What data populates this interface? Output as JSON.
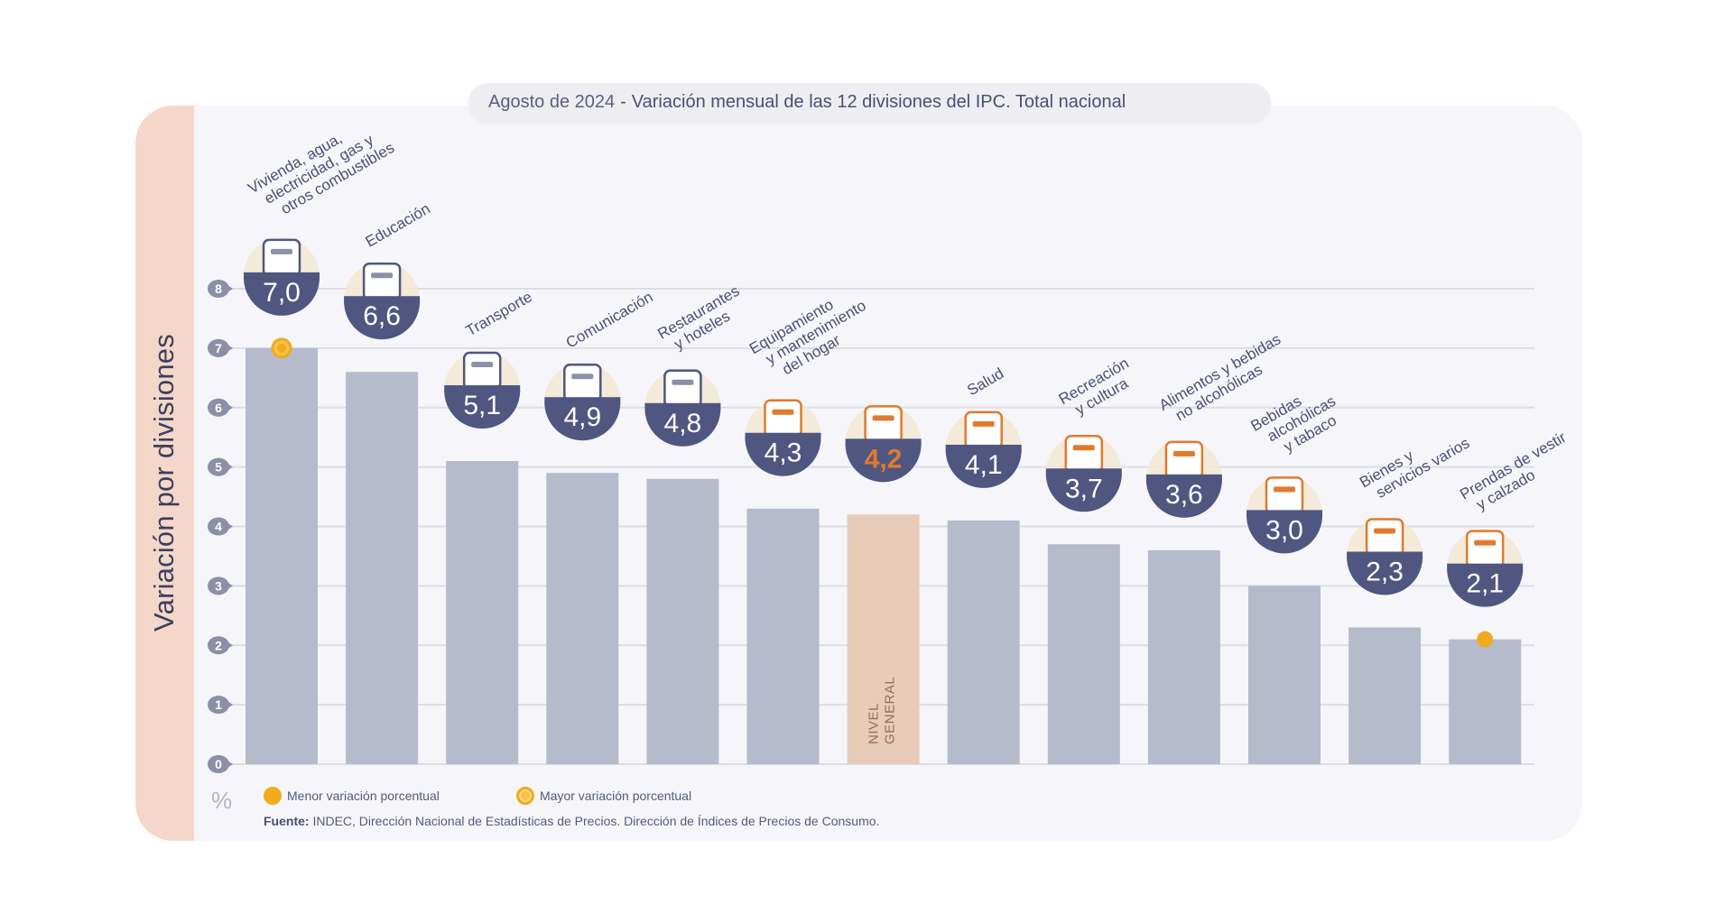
{
  "title": {
    "period": "Agosto de 2024",
    "separator": "-",
    "main": "Variación mensual de las 12 divisiones del IPC. Total nacional"
  },
  "colors": {
    "bar": "#b5bbcb",
    "bar_nivel_general": "#e8cbb9",
    "badge_bowl": "#4f5680",
    "badge_top": "#f3e7d3",
    "accent_orange": "#e07a2e",
    "marker_yellow": "#f0ab1e",
    "label": "#4a4f73",
    "strip": "#f4d7c9"
  },
  "legend": {
    "min_label": "Menor variación porcentual",
    "max_label": "Mayor variación porcentual"
  },
  "source": {
    "label": "Fuente:",
    "text": "INDEC, Dirección Nacional de Estadísticas de Precios. Dirección de Índices de Precios de Consumo."
  },
  "chart_data": {
    "type": "bar",
    "title": "Agosto de 2024 - Variación mensual de las 12 divisiones del IPC. Total nacional",
    "xlabel": "",
    "ylabel": "Variación por divisiones",
    "yunit": "%",
    "ylim": [
      0,
      8
    ],
    "yticks": [
      "0",
      "1",
      "2",
      "3",
      "4",
      "5",
      "6",
      "7",
      "8"
    ],
    "grid": true,
    "legend_position": "bottom-left",
    "categories": [
      [
        "Vivienda, agua,",
        "electricidad, gas y",
        "otros combustibles"
      ],
      [
        "Educación"
      ],
      [
        "Transporte"
      ],
      [
        "Comunicación"
      ],
      [
        "Restaurantes",
        "y hoteles"
      ],
      [
        "Equipamiento",
        "y mantenimiento",
        "del hogar"
      ],
      [
        "NIVEL",
        "GENERAL"
      ],
      [
        "Salud"
      ],
      [
        "Recreación",
        "y cultura"
      ],
      [
        "Alimentos y bebidas",
        "no alcohólicas"
      ],
      [
        "Bebidas",
        "alcohólicas",
        "y tabaco"
      ],
      [
        "Bienes y",
        "servicios varios"
      ],
      [
        "Prendas de vestir",
        "y calzado"
      ]
    ],
    "values": [
      7.0,
      6.6,
      5.1,
      4.9,
      4.8,
      4.3,
      4.2,
      4.1,
      3.7,
      3.6,
      3.0,
      2.3,
      2.1
    ],
    "value_labels": [
      "7,0",
      "6,6",
      "5,1",
      "4,9",
      "4,8",
      "4,3",
      "4,2",
      "4,1",
      "3,7",
      "3,6",
      "3,0",
      "2,3",
      "2,1"
    ],
    "icons": [
      "key-bulb-icon",
      "notebook-pencil-icon",
      "car-sube-icon",
      "smartphone-icon",
      "plate-cutlery-icon",
      "appliance-icon",
      "shopping-basket-icon",
      "first-aid-icon",
      "umbrella-sun-icon",
      "food-chicken-icon",
      "wine-bottle-icon",
      "comb-scissors-icon",
      "shirt-shoe-icon"
    ],
    "highlight_index": 6,
    "max_index": 0,
    "min_index": 12
  }
}
